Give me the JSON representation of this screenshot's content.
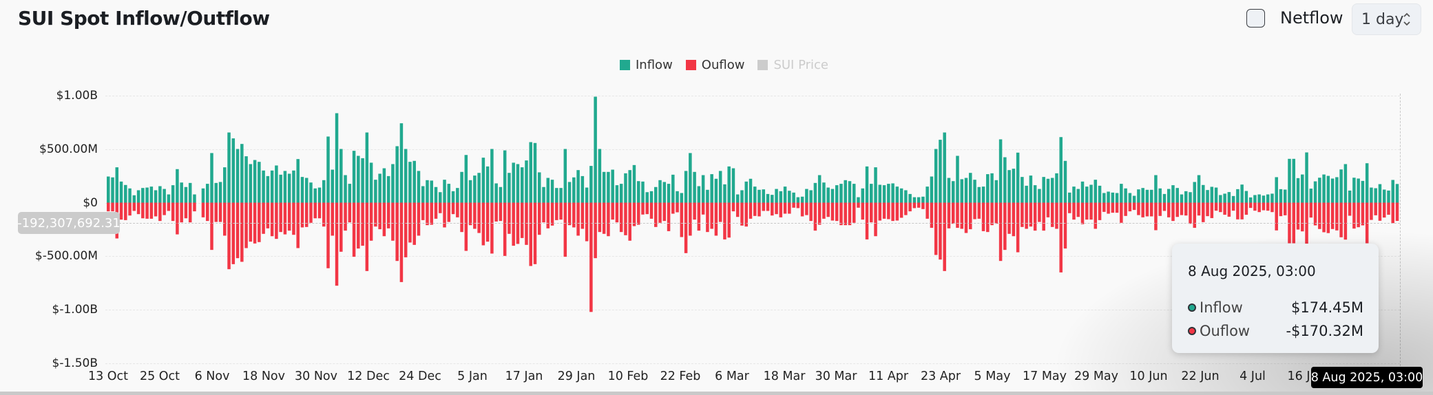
{
  "header": {
    "title": "SUI Spot Inflow/Outflow",
    "netflow_label": "Netflow",
    "netflow_checked": false,
    "period_value": "1 day"
  },
  "legend": [
    {
      "label": "Inflow",
      "color": "#21a98f",
      "active": true
    },
    {
      "label": "Ouflow",
      "color": "#f23645",
      "active": true
    },
    {
      "label": "SUI Price",
      "color": "#cccccc",
      "active": false
    }
  ],
  "crosshair": {
    "y_value_label": "-192,307,692.31",
    "x_value_label": "8 Aug 2025, 03:00"
  },
  "tooltip": {
    "date": "8 Aug 2025, 03:00",
    "rows": [
      {
        "name": "Inflow",
        "value": "$174.45M",
        "dot_color": "#21a98f"
      },
      {
        "name": "Ouflow",
        "value": "-$170.32M",
        "dot_color": "#f23645"
      }
    ]
  },
  "colors": {
    "inflow": "#21a98f",
    "outflow": "#f23645",
    "grid": "#e6e6e6",
    "background": "#f9f9f9"
  },
  "chart_data": {
    "type": "bar",
    "title": "SUI Spot Inflow/Outflow",
    "xlabel": "",
    "ylabel": "",
    "unit": "USD millions",
    "ylim": [
      -1500,
      1000
    ],
    "grid": true,
    "legend_position": "top",
    "y_ticks": [
      {
        "value": 1000,
        "label": "$1.00B"
      },
      {
        "value": 500,
        "label": "$500.00M"
      },
      {
        "value": 0,
        "label": "$0"
      },
      {
        "value": -500,
        "label": "$-500.00M"
      },
      {
        "value": -1000,
        "label": "$-1.00B"
      },
      {
        "value": -1500,
        "label": "$-1.50B"
      }
    ],
    "x_ticks": [
      "13 Oct",
      "25 Oct",
      "6 Nov",
      "18 Nov",
      "30 Nov",
      "12 Dec",
      "24 Dec",
      "5 Jan",
      "17 Jan",
      "29 Jan",
      "10 Feb",
      "22 Feb",
      "6 Mar",
      "18 Mar",
      "30 Mar",
      "11 Apr",
      "23 Apr",
      "5 May",
      "17 May",
      "29 May",
      "10 Jun",
      "22 Jun",
      "4 Jul",
      "16 Jul"
    ],
    "x_range": [
      "13 Oct 2024",
      "8 Aug 2025"
    ],
    "series": [
      {
        "name": "Inflow",
        "color": "#21a98f",
        "values": [
          244,
          236,
          330,
          197,
          165,
          133,
          69,
          116,
          137,
          141,
          150,
          116,
          154,
          128,
          77,
          163,
          313,
          188,
          146,
          184,
          77,
          0,
          133,
          176,
          463,
          184,
          193,
          330,
          655,
          600,
          501,
          548,
          433,
          360,
          398,
          381,
          300,
          248,
          300,
          347,
          261,
          296,
          270,
          300,
          407,
          240,
          231,
          188,
          133,
          141,
          210,
          617,
          308,
          835,
          501,
          257,
          176,
          484,
          437,
          415,
          655,
          373,
          214,
          270,
          321,
          248,
          360,
          527,
          741,
          501,
          381,
          390,
          296,
          154,
          210,
          206,
          146,
          98,
          214,
          176,
          107,
          137,
          287,
          445,
          210,
          253,
          278,
          420,
          338,
          501,
          180,
          146,
          488,
          278,
          373,
          360,
          330,
          394,
          565,
          557,
          283,
          146,
          231,
          214,
          137,
          137,
          501,
          193,
          236,
          304,
          248,
          141,
          343,
          989,
          501,
          287,
          287,
          308,
          163,
          176,
          274,
          304,
          351,
          201,
          197,
          98,
          107,
          146,
          210,
          193,
          176,
          261,
          107,
          90,
          296,
          463,
          287,
          154,
          257,
          120,
          266,
          223,
          296,
          171,
          338,
          321,
          77,
          116,
          197,
          223,
          150,
          120,
          124,
          81,
          73,
          128,
          107,
          150,
          111,
          94,
          51,
          56,
          128,
          116,
          184,
          257,
          188,
          141,
          128,
          163,
          176,
          210,
          201,
          176,
          51,
          133,
          338,
          176,
          330,
          167,
          163,
          176,
          180,
          150,
          133,
          116,
          81,
          51,
          51,
          56,
          150,
          244,
          501,
          587,
          655,
          231,
          201,
          437,
          219,
          231,
          278,
          214,
          146,
          150,
          266,
          274,
          210,
          591,
          424,
          304,
          317,
          467,
          240,
          158,
          253,
          163,
          128,
          240,
          223,
          231,
          274,
          612,
          390,
          94,
          150,
          128,
          197,
          150,
          167,
          214,
          158,
          90,
          103,
          94,
          90,
          176,
          133,
          90,
          64,
          124,
          137,
          120,
          120,
          257,
          133,
          81,
          128,
          163,
          137,
          77,
          107,
          98,
          193,
          257,
          165,
          118,
          148,
          141,
          71,
          84,
          99,
          62,
          126,
          169,
          109,
          49,
          71,
          77,
          66,
          77,
          84,
          238,
          126,
          122,
          409,
          409,
          229,
          263,
          469,
          131,
          199,
          233,
          263,
          250,
          225,
          238,
          310,
          360,
          113,
          233,
          225,
          203,
          368,
          141,
          135,
          173,
          122,
          113,
          212,
          174.45
        ]
      },
      {
        "name": "Ouflow",
        "color": "#f23645",
        "values": [
          -81,
          -81,
          -334,
          -158,
          -163,
          -120,
          -77,
          -107,
          -146,
          -150,
          -150,
          -128,
          -171,
          -116,
          -77,
          -171,
          -296,
          -184,
          -146,
          -184,
          -81,
          0,
          -137,
          -171,
          -441,
          -180,
          -180,
          -308,
          -621,
          -574,
          -518,
          -552,
          -424,
          -364,
          -381,
          -368,
          -291,
          -240,
          -313,
          -338,
          -274,
          -296,
          -261,
          -300,
          -424,
          -231,
          -227,
          -188,
          -146,
          -146,
          -223,
          -612,
          -308,
          -775,
          -458,
          -261,
          -184,
          -505,
          -428,
          -402,
          -638,
          -355,
          -223,
          -248,
          -313,
          -240,
          -355,
          -544,
          -741,
          -510,
          -372,
          -394,
          -308,
          -163,
          -210,
          -206,
          -150,
          -98,
          -231,
          -180,
          -107,
          -137,
          -274,
          -450,
          -210,
          -244,
          -283,
          -398,
          -364,
          -475,
          -176,
          -171,
          -497,
          -291,
          -402,
          -385,
          -330,
          -394,
          -591,
          -574,
          -300,
          -184,
          -240,
          -214,
          -163,
          -158,
          -505,
          -210,
          -231,
          -308,
          -244,
          -360,
          -1020,
          -518,
          -274,
          -291,
          -313,
          -158,
          -184,
          -274,
          -304,
          -355,
          -219,
          -206,
          -111,
          -107,
          -150,
          -227,
          -188,
          -171,
          -266,
          -103,
          -90,
          -321,
          -471,
          -308,
          -158,
          -261,
          -111,
          -274,
          -244,
          -308,
          -180,
          -343,
          -326,
          -81,
          -133,
          -214,
          -223,
          -150,
          -124,
          -128,
          -77,
          -77,
          -120,
          -107,
          -137,
          -103,
          -103,
          -47,
          -51,
          -128,
          -116,
          -171,
          -261,
          -206,
          -150,
          -133,
          -167,
          -171,
          -210,
          -210,
          -210,
          -188,
          -47,
          -158,
          -343,
          -184,
          -313,
          -167,
          -150,
          -154,
          -171,
          -167,
          -141,
          -116,
          -81,
          -51,
          -47,
          -60,
          -150,
          -235,
          -488,
          -531,
          -638,
          -240,
          -197,
          -235,
          -244,
          -283,
          -248,
          -154,
          -150,
          -266,
          -274,
          -210,
          -197,
          -544,
          -441,
          -291,
          -313,
          -463,
          -227,
          -244,
          -223,
          -261,
          -180,
          -261,
          -137,
          -227,
          -244,
          -651,
          -428,
          -98,
          -158,
          -133,
          -201,
          -158,
          -158,
          -244,
          -163,
          -86,
          -103,
          -94,
          -94,
          -188,
          -124,
          -81,
          -68,
          -116,
          -137,
          -128,
          -128,
          -257,
          -124,
          -77,
          -137,
          -171,
          -133,
          -116,
          -120,
          -197,
          -235,
          -120,
          -182,
          -126,
          -144,
          -75,
          -88,
          -113,
          -131,
          -75,
          -156,
          -156,
          -113,
          -49,
          -75,
          -88,
          -71,
          -75,
          -88,
          -259,
          -126,
          -118,
          -379,
          -379,
          -251,
          -268,
          -392,
          -139,
          -212,
          -246,
          -276,
          -284,
          -246,
          -259,
          -323,
          -345,
          -122,
          -242,
          -229,
          -212,
          -379,
          -161,
          -118,
          -169,
          -139,
          -113,
          -191,
          -170.32
        ]
      }
    ],
    "highlighted_point": {
      "date": "8 Aug 2025, 03:00",
      "inflow": 174.45,
      "outflow": -170.32
    }
  }
}
